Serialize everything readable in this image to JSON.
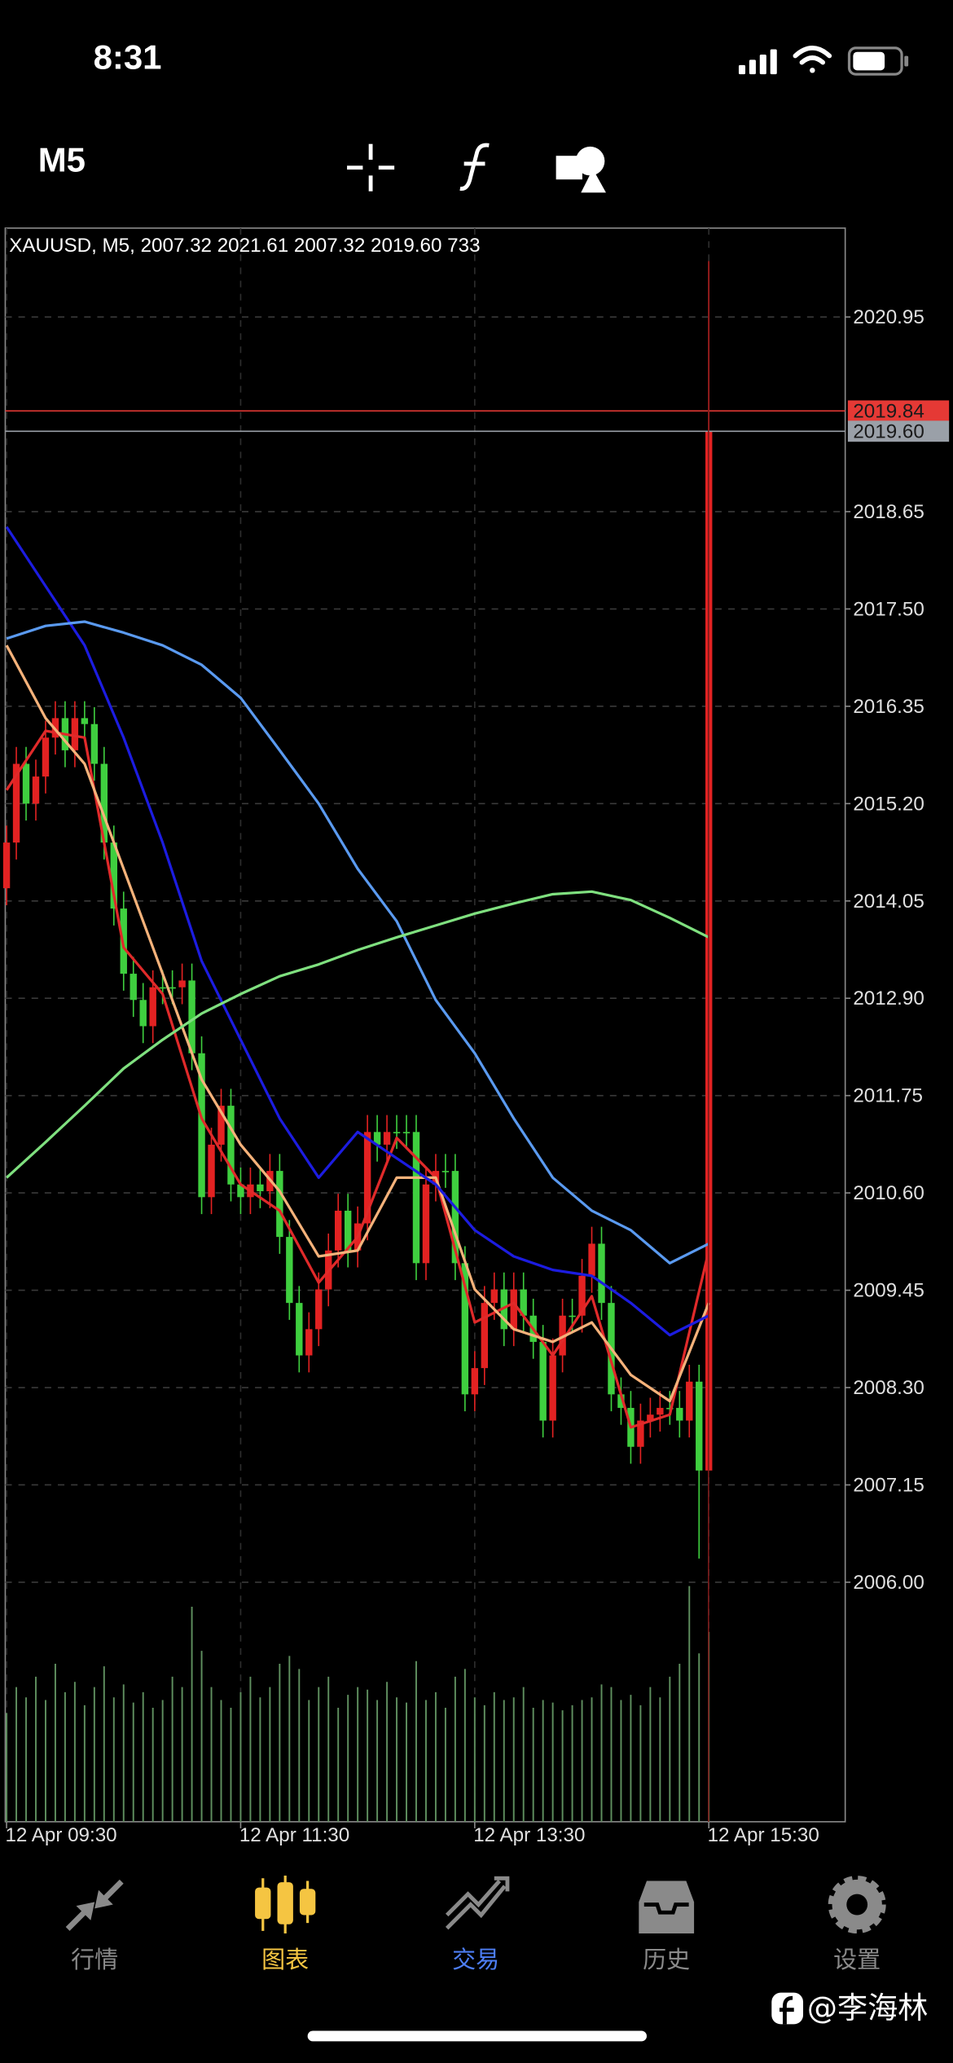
{
  "status": {
    "time": "8:31"
  },
  "toolbar": {
    "timeframe": "M5"
  },
  "chart_data": {
    "type": "candlestick",
    "title": "XAUUSD, M5, 2007.32 2021.61 2007.32 2019.60 733",
    "categories": [
      "12 Apr 09:30",
      null,
      null,
      null,
      null,
      null,
      null,
      null,
      null,
      null,
      null,
      null,
      null,
      null,
      null,
      null,
      null,
      null,
      null,
      null,
      null,
      null,
      null,
      null,
      "12 Apr 11:30",
      null,
      null,
      null,
      null,
      null,
      null,
      null,
      null,
      null,
      null,
      null,
      null,
      null,
      null,
      null,
      null,
      null,
      null,
      null,
      null,
      null,
      null,
      null,
      "12 Apr 13:30",
      null,
      null,
      null,
      null,
      null,
      null,
      null,
      null,
      null,
      null,
      null,
      null,
      null,
      null,
      null,
      null,
      null,
      null,
      null,
      null,
      null,
      null,
      null,
      "12 Apr 15:30"
    ],
    "open": [
      2014.2,
      2014.74,
      2015.67,
      2015.2,
      2015.52,
      2015.98,
      2016.21,
      2015.83,
      2016.21,
      2016.14,
      2015.67,
      2014.74,
      2013.96,
      2013.19,
      2012.88,
      2012.57,
      2013.03,
      2013.03,
      2013.03,
      2013.11,
      2012.25,
      2010.55,
      2011.17,
      2011.63,
      2010.7,
      2010.55,
      2010.7,
      2010.62,
      2010.86,
      2010.08,
      2009.3,
      2008.68,
      2008.99,
      2009.46,
      2009.92,
      2010.39,
      2009.92,
      2010.24,
      2011.32,
      2011.17,
      2011.32,
      2011.32,
      2011.32,
      2009.77,
      2010.7,
      2010.86,
      2010.86,
      2009.77,
      2008.22,
      2008.53,
      2009.3,
      2009.46,
      2008.99,
      2009.46,
      2009.15,
      2008.84,
      2007.91,
      2008.68,
      2009.15,
      2009.15,
      2009.62,
      2010.0,
      2009.3,
      2008.22,
      2008.06,
      2007.6,
      2007.91,
      2007.98,
      2008.06,
      2008.06,
      2007.91,
      2008.37,
      2007.32
    ],
    "high": [
      2014.94,
      2015.87,
      2015.87,
      2015.72,
      2016.18,
      2016.41,
      2016.41,
      2016.41,
      2016.41,
      2016.34,
      2015.87,
      2014.94,
      2014.16,
      2013.39,
      2013.08,
      2013.23,
      2013.23,
      2013.23,
      2013.31,
      2013.31,
      2012.45,
      2011.37,
      2011.83,
      2011.83,
      2010.9,
      2010.9,
      2010.9,
      2011.06,
      2011.06,
      2010.28,
      2009.5,
      2009.19,
      2009.66,
      2010.12,
      2010.59,
      2010.59,
      2010.44,
      2011.52,
      2011.52,
      2011.52,
      2011.52,
      2011.52,
      2011.52,
      2010.9,
      2011.06,
      2011.06,
      2011.06,
      2009.97,
      2008.73,
      2009.5,
      2009.66,
      2009.66,
      2009.66,
      2009.66,
      2009.35,
      2009.04,
      2008.88,
      2009.35,
      2009.35,
      2009.82,
      2010.2,
      2010.2,
      2009.5,
      2008.42,
      2008.26,
      2008.11,
      2008.18,
      2008.26,
      2008.26,
      2008.26,
      2008.57,
      2008.57,
      2021.61
    ],
    "low": [
      2014.0,
      2014.54,
      2015.0,
      2015.0,
      2015.32,
      2015.78,
      2015.63,
      2015.63,
      2015.94,
      2015.47,
      2014.54,
      2013.76,
      2012.99,
      2012.68,
      2012.37,
      2012.37,
      2012.83,
      2012.83,
      2012.83,
      2012.05,
      2010.35,
      2010.35,
      2010.97,
      2010.5,
      2010.35,
      2010.35,
      2010.42,
      2010.42,
      2009.88,
      2009.1,
      2008.48,
      2008.48,
      2008.79,
      2009.26,
      2009.72,
      2009.72,
      2009.72,
      2010.04,
      2010.97,
      2010.97,
      2011.12,
      2011.12,
      2009.57,
      2009.57,
      2010.5,
      2010.66,
      2009.57,
      2008.02,
      2008.02,
      2008.33,
      2009.1,
      2008.79,
      2008.79,
      2008.95,
      2008.64,
      2007.71,
      2007.71,
      2008.48,
      2008.95,
      2008.95,
      2009.42,
      2009.1,
      2008.02,
      2007.86,
      2007.4,
      2007.4,
      2007.71,
      2007.78,
      2007.86,
      2007.71,
      2007.71,
      2006.28,
      2007.32
    ],
    "close": [
      2014.74,
      2015.67,
      2015.2,
      2015.52,
      2015.98,
      2016.21,
      2015.83,
      2016.21,
      2016.14,
      2015.67,
      2014.74,
      2013.96,
      2013.19,
      2012.88,
      2012.57,
      2013.03,
      2013.03,
      2013.03,
      2013.11,
      2012.25,
      2010.55,
      2011.17,
      2011.63,
      2010.7,
      2010.55,
      2010.7,
      2010.62,
      2010.86,
      2010.08,
      2009.3,
      2008.68,
      2008.99,
      2009.46,
      2009.92,
      2010.39,
      2009.92,
      2010.24,
      2011.32,
      2011.17,
      2011.32,
      2011.32,
      2011.32,
      2009.77,
      2010.7,
      2010.86,
      2010.86,
      2009.77,
      2008.22,
      2008.53,
      2009.3,
      2009.46,
      2008.99,
      2009.46,
      2009.15,
      2008.84,
      2007.91,
      2008.68,
      2009.15,
      2009.15,
      2009.62,
      2010.0,
      2009.3,
      2008.22,
      2008.06,
      2007.6,
      2007.91,
      2007.98,
      2008.06,
      2008.06,
      2007.91,
      2008.37,
      2007.32,
      2019.6
    ],
    "up_color": "#e32222",
    "down_color": "#3fcf3f",
    "volume": [
      420,
      520,
      480,
      560,
      470,
      610,
      500,
      540,
      450,
      520,
      600,
      480,
      530,
      460,
      500,
      440,
      470,
      560,
      520,
      830,
      660,
      520,
      470,
      440,
      500,
      560,
      480,
      520,
      610,
      640,
      590,
      470,
      520,
      560,
      440,
      490,
      520,
      510,
      470,
      540,
      480,
      460,
      620,
      470,
      500,
      440,
      560,
      590,
      480,
      450,
      500,
      470,
      480,
      520,
      440,
      470,
      460,
      430,
      450,
      470,
      480,
      530,
      520,
      470,
      490,
      450,
      520,
      480,
      560,
      610,
      910,
      650,
      733
    ],
    "volume_color": "#5f8f5f",
    "volume_lim": [
      0,
      1000
    ],
    "lines": [
      {
        "color": "#e02a2a",
        "x": [
          0,
          4,
          8,
          12,
          16,
          20,
          24,
          28,
          32,
          36,
          40,
          44,
          48,
          52,
          56,
          60,
          64,
          68,
          72
        ],
        "values": [
          2015.36,
          2016.06,
          2015.98,
          2013.5,
          2012.95,
          2011.48,
          2010.7,
          2010.39,
          2009.54,
          2010.08,
          2011.25,
          2010.78,
          2009.07,
          2009.3,
          2008.68,
          2009.38,
          2007.83,
          2007.98,
          2009.92
        ]
      },
      {
        "color": "#f5b27a",
        "x": [
          0,
          4,
          8,
          12,
          16,
          20,
          24,
          28,
          32,
          36,
          40,
          44,
          48,
          52,
          56,
          60,
          64,
          68,
          72
        ],
        "values": [
          2017.07,
          2016.21,
          2015.67,
          2014.43,
          2013.19,
          2011.94,
          2011.17,
          2010.62,
          2009.85,
          2009.92,
          2010.78,
          2010.78,
          2009.46,
          2008.99,
          2008.84,
          2009.07,
          2008.45,
          2008.14,
          2009.3
        ]
      },
      {
        "color": "#1c1ce0",
        "x": [
          0,
          4,
          8,
          12,
          16,
          20,
          24,
          28,
          32,
          36,
          40,
          44,
          48,
          52,
          56,
          60,
          64,
          68,
          72
        ],
        "values": [
          2018.47,
          2017.77,
          2017.07,
          2015.98,
          2014.74,
          2013.34,
          2012.41,
          2011.48,
          2010.78,
          2011.32,
          2011.01,
          2010.7,
          2010.16,
          2009.85,
          2009.69,
          2009.62,
          2009.3,
          2008.92,
          2009.15
        ]
      },
      {
        "color": "#5a9af0",
        "x": [
          0,
          4,
          8,
          12,
          16,
          20,
          24,
          28,
          32,
          36,
          40,
          44,
          48,
          52,
          56,
          60,
          64,
          68,
          72
        ],
        "values": [
          2017.15,
          2017.3,
          2017.35,
          2017.22,
          2017.07,
          2016.84,
          2016.45,
          2015.83,
          2015.2,
          2014.43,
          2013.81,
          2012.88,
          2012.25,
          2011.48,
          2010.78,
          2010.39,
          2010.16,
          2009.77,
          2010.0
        ]
      },
      {
        "color": "#7fe07f",
        "x": [
          0,
          4,
          8,
          12,
          16,
          20,
          24,
          28,
          32,
          36,
          40,
          44,
          48,
          52,
          56,
          60,
          64,
          68,
          72
        ],
        "values": [
          2010.78,
          2011.2,
          2011.63,
          2012.07,
          2012.41,
          2012.72,
          2012.95,
          2013.16,
          2013.3,
          2013.47,
          2013.62,
          2013.76,
          2013.9,
          2014.02,
          2014.13,
          2014.16,
          2014.06,
          2013.85,
          2013.62
        ]
      }
    ],
    "price_lines": [
      {
        "value": 2019.84,
        "color": "#e53935"
      },
      {
        "value": 2019.6,
        "label": "2019.60",
        "color": "#9aa0a8"
      }
    ],
    "ylim": [
      2003.17,
      2022.0
    ],
    "yticks": [
      2020.95,
      2018.65,
      {
        "value": 2017.5,
        "label": "2017.50"
      },
      2016.35,
      {
        "value": 2015.2,
        "label": "2015.20"
      },
      2014.05,
      {
        "value": 2012.9,
        "label": "2012.90"
      },
      2011.75,
      {
        "value": 2010.6,
        "label": "2010.60"
      },
      2009.45,
      {
        "value": 2008.3,
        "label": "2008.30"
      },
      2007.15,
      {
        "value": 2006,
        "label": "2006.00"
      }
    ],
    "grid": true
  },
  "tabs": [
    "行情",
    "图表",
    "交易",
    "历史",
    "设置"
  ],
  "watermark": "@李海林"
}
